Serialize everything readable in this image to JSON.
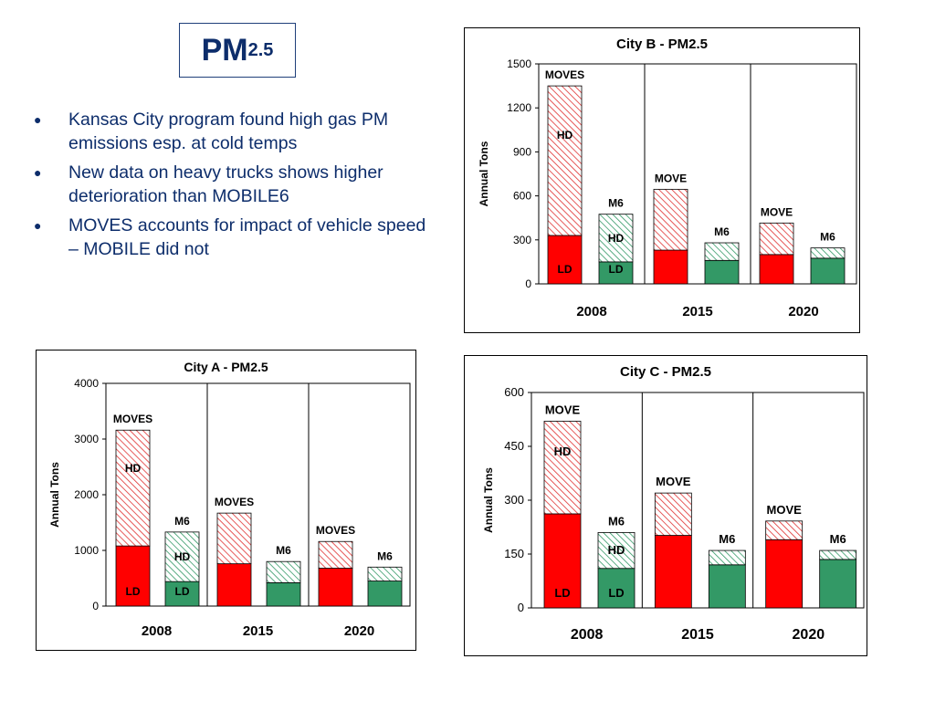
{
  "slide": {
    "title_main": "PM",
    "title_sub": "2.5",
    "bullets": [
      "Kansas City program found high gas PM emissions esp. at cold temps",
      "New data on heavy trucks shows higher deterioration than MOBILE6",
      "MOVES accounts for impact of vehicle speed – MOBILE did not"
    ]
  },
  "colors": {
    "ld_moves": "#ff0000",
    "ld_m6": "#339966",
    "hd_moves_hatch": "#e03030",
    "hd_m6_hatch": "#339966",
    "text": "#0d2d6b"
  },
  "chart_data": [
    {
      "id": "city-b",
      "type": "bar",
      "stacked": true,
      "title": "City B - PM2.5",
      "ylabel": "Annual Tons",
      "ylim": [
        0,
        1500
      ],
      "yticks": [
        0,
        300,
        600,
        900,
        1200,
        1500
      ],
      "groups": [
        "2008",
        "2015",
        "2020"
      ],
      "bars": [
        {
          "group": "2008",
          "model": "MOVES",
          "label": "MOVES",
          "ld": 330,
          "hd": 1020,
          "ld_label": "LD",
          "hd_label": "HD"
        },
        {
          "group": "2008",
          "model": "M6",
          "label": "M6",
          "ld": 150,
          "hd": 325,
          "ld_label": "LD",
          "hd_label": "HD"
        },
        {
          "group": "2015",
          "model": "MOVES",
          "label": "MOVE",
          "ld": 230,
          "hd": 415
        },
        {
          "group": "2015",
          "model": "M6",
          "label": "M6",
          "ld": 160,
          "hd": 120
        },
        {
          "group": "2020",
          "model": "MOVES",
          "label": "MOVE",
          "ld": 200,
          "hd": 215
        },
        {
          "group": "2020",
          "model": "M6",
          "label": "M6",
          "ld": 175,
          "hd": 70
        }
      ]
    },
    {
      "id": "city-a",
      "type": "bar",
      "stacked": true,
      "title": "City A - PM2.5",
      "ylabel": "Annual Tons",
      "ylim": [
        0,
        4000
      ],
      "yticks": [
        0,
        1000,
        2000,
        3000,
        4000
      ],
      "groups": [
        "2008",
        "2015",
        "2020"
      ],
      "bars": [
        {
          "group": "2008",
          "model": "MOVES",
          "label": "MOVES",
          "ld": 1080,
          "hd": 2080,
          "ld_label": "LD",
          "hd_label": "HD"
        },
        {
          "group": "2008",
          "model": "M6",
          "label": "M6",
          "ld": 440,
          "hd": 890,
          "ld_label": "LD",
          "hd_label": "HD"
        },
        {
          "group": "2015",
          "model": "MOVES",
          "label": "MOVES",
          "ld": 760,
          "hd": 910
        },
        {
          "group": "2015",
          "model": "M6",
          "label": "M6",
          "ld": 420,
          "hd": 380
        },
        {
          "group": "2020",
          "model": "MOVES",
          "label": "MOVES",
          "ld": 680,
          "hd": 480
        },
        {
          "group": "2020",
          "model": "M6",
          "label": "M6",
          "ld": 450,
          "hd": 250
        }
      ]
    },
    {
      "id": "city-c",
      "type": "bar",
      "stacked": true,
      "title": "City C  - PM2.5",
      "ylabel": "Annual Tons",
      "ylim": [
        0,
        600
      ],
      "yticks": [
        0,
        150,
        300,
        450,
        600
      ],
      "groups": [
        "2008",
        "2015",
        "2020"
      ],
      "bars": [
        {
          "group": "2008",
          "model": "MOVES",
          "label": "MOVE",
          "ld": 262,
          "hd": 258,
          "ld_label": "LD",
          "hd_label": "HD"
        },
        {
          "group": "2008",
          "model": "M6",
          "label": "M6",
          "ld": 110,
          "hd": 100,
          "ld_label": "LD",
          "hd_label": "HD"
        },
        {
          "group": "2015",
          "model": "MOVES",
          "label": "MOVE",
          "ld": 202,
          "hd": 118
        },
        {
          "group": "2015",
          "model": "M6",
          "label": "M6",
          "ld": 120,
          "hd": 40
        },
        {
          "group": "2020",
          "model": "MOVES",
          "label": "MOVE",
          "ld": 190,
          "hd": 52
        },
        {
          "group": "2020",
          "model": "M6",
          "label": "M6",
          "ld": 135,
          "hd": 25
        }
      ]
    }
  ]
}
